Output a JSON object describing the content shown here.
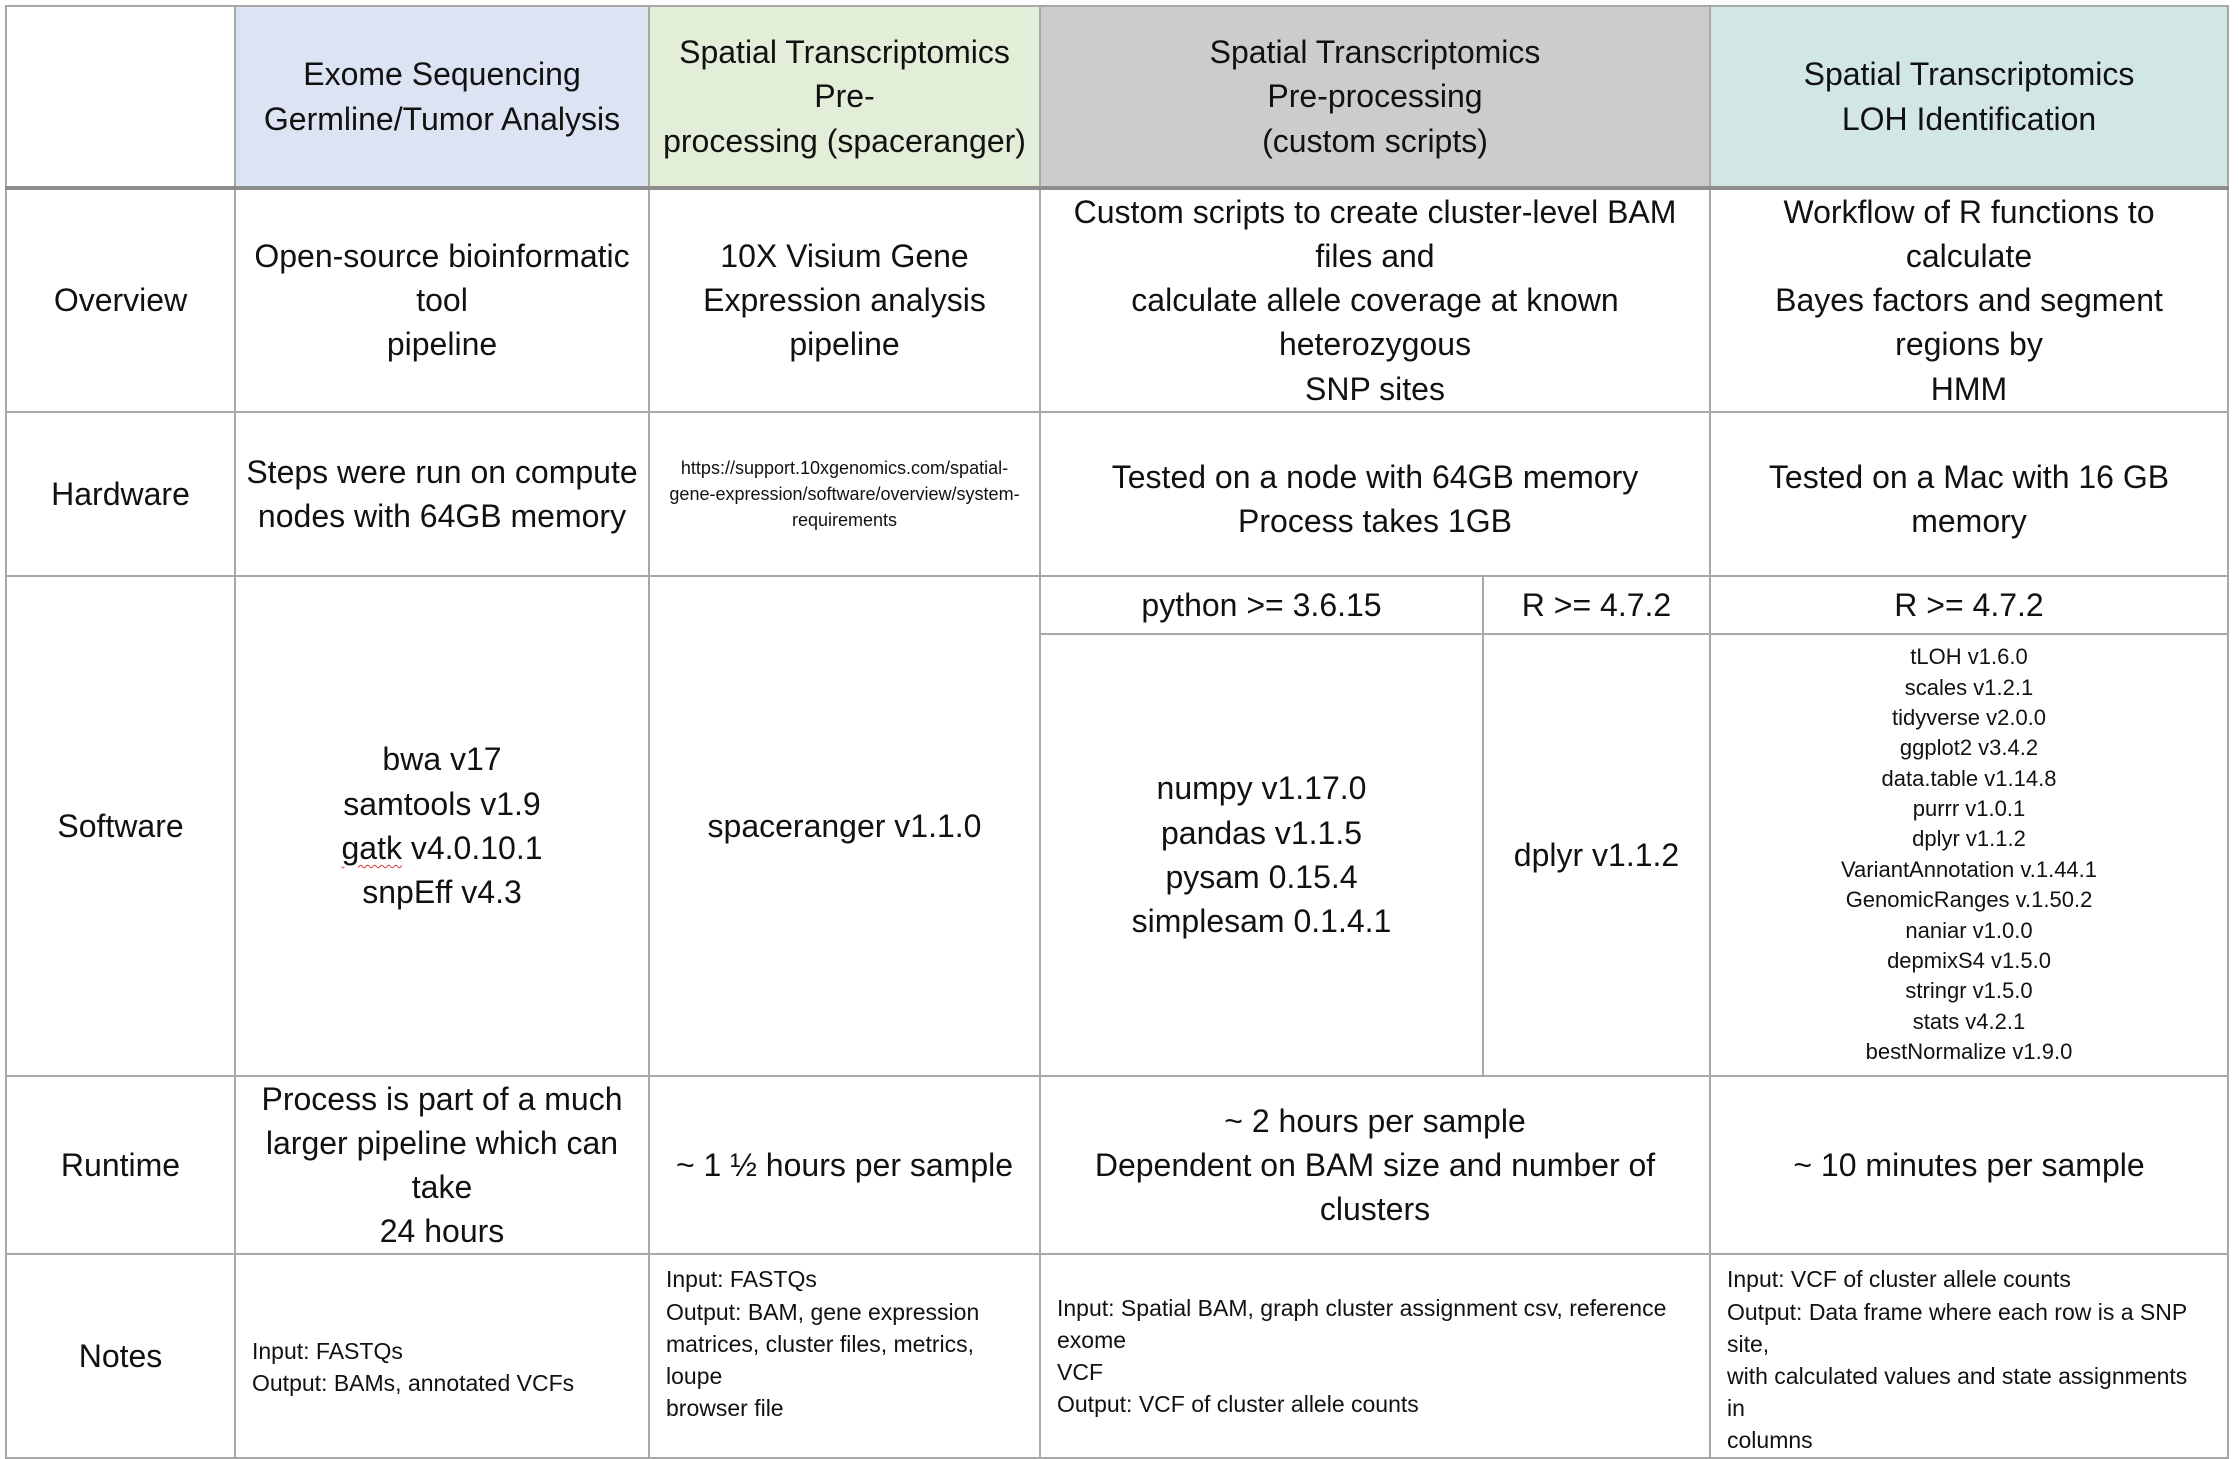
{
  "colors": {
    "exome_header": "#dce3f2",
    "spaceranger_header": "#e3eed8",
    "custom_header": "#cccccc",
    "loh_header": "#d2e6e6",
    "grid": "#a8a8a8"
  },
  "headers": {
    "exome": [
      "Exome Sequencing",
      "Germline/Tumor Analysis"
    ],
    "spaceranger": [
      "Spatial Transcriptomics Pre-",
      "processing (spaceranger)"
    ],
    "custom": [
      "Spatial Transcriptomics",
      "Pre-processing",
      "(custom scripts)"
    ],
    "loh": [
      "Spatial Transcriptomics",
      "LOH Identification"
    ]
  },
  "rows": {
    "overview": {
      "label": "Overview",
      "exome": [
        "Open-source bioinformatic tool",
        "pipeline"
      ],
      "spaceranger": [
        "10X Visium Gene",
        "Expression analysis pipeline"
      ],
      "custom": [
        "Custom scripts to create cluster-level BAM files and",
        "calculate allele coverage at known heterozygous",
        "SNP sites"
      ],
      "loh": [
        "Workflow of R functions to calculate",
        "Bayes factors and segment regions by",
        "HMM"
      ]
    },
    "hardware": {
      "label": "Hardware",
      "exome": [
        "Steps were run on compute",
        "nodes with 64GB memory"
      ],
      "spaceranger": [
        "https://support.10xgenomics.com/spatial-",
        "gene-expression/software/overview/system-",
        "requirements"
      ],
      "custom": [
        "Tested on a node with 64GB memory",
        "Process takes 1GB"
      ],
      "loh": [
        "Tested on a Mac with 16 GB memory"
      ]
    },
    "software": {
      "label": "Software",
      "exome": [
        "bwa v17",
        "samtools v1.9",
        "gatk v4.0.10.1",
        "snpEff v4.3"
      ],
      "spaceranger": [
        "spaceranger v1.1.0"
      ],
      "custom_python_header": "python >= 3.6.15",
      "custom_r_header": "R >= 4.7.2",
      "custom_python": [
        "numpy v1.17.0",
        "pandas v1.1.5",
        "pysam 0.15.4",
        "simplesam 0.1.4.1"
      ],
      "custom_r": [
        "dplyr v1.1.2"
      ],
      "loh_header": "R >= 4.7.2",
      "loh": [
        "tLOH v1.6.0",
        "scales v1.2.1",
        "tidyverse v2.0.0",
        "ggplot2 v3.4.2",
        "data.table v1.14.8",
        "purrr v1.0.1",
        "dplyr v1.1.2",
        "VariantAnnotation  v.1.44.1",
        "GenomicRanges v.1.50.2",
        "naniar v1.0.0",
        "depmixS4 v1.5.0",
        "stringr v1.5.0",
        "stats v4.2.1",
        "bestNormalize v1.9.0"
      ]
    },
    "runtime": {
      "label": "Runtime",
      "exome": [
        "Process is part of a much",
        "larger pipeline which can take",
        "24 hours"
      ],
      "spaceranger": [
        "~ 1 ½ hours per sample"
      ],
      "custom": [
        "~ 2 hours per sample",
        "Dependent on BAM size and number of clusters"
      ],
      "loh": [
        "~ 10 minutes per sample"
      ]
    },
    "notes": {
      "label": "Notes",
      "exome": [
        "Input: FASTQs",
        "Output: BAMs, annotated VCFs"
      ],
      "spaceranger": [
        "Input: FASTQs",
        "Output: BAM, gene expression",
        "matrices, cluster files, metrics, loupe",
        "browser file"
      ],
      "custom": [
        "Input: Spatial BAM, graph cluster assignment csv, reference exome",
        "VCF",
        "Output: VCF of cluster allele counts"
      ],
      "loh": [
        "Input: VCF of cluster allele counts",
        "Output: Data frame where each row is a SNP site,",
        "with calculated values and state assignments in",
        "columns"
      ]
    }
  }
}
